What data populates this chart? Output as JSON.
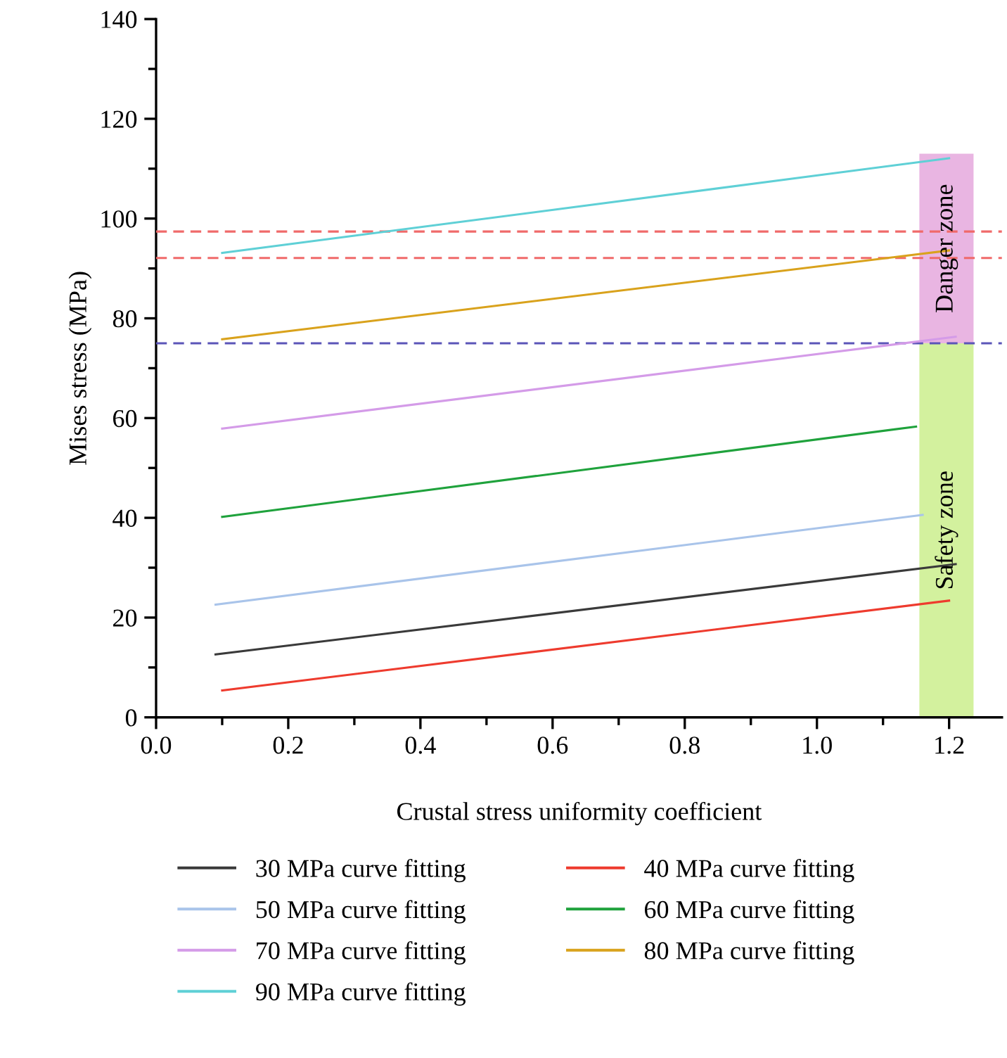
{
  "chart_data": {
    "type": "line",
    "xlabel": "Crustal stress uniformity coefficient",
    "ylabel": "Mises stress (MPa)",
    "xlim": [
      0,
      1.28
    ],
    "xticks": [
      {
        "value": 0,
        "label": "0.0"
      },
      0.2,
      0.4,
      0.6,
      0.8,
      {
        "value": 1,
        "label": "1.0"
      },
      1.2
    ],
    "ylim": [
      0,
      140
    ],
    "yticks": [
      0,
      20,
      40,
      60,
      80,
      100,
      120,
      140
    ],
    "grid": false,
    "legend": "bottom",
    "line_style": "solid",
    "marker": "none",
    "series": [
      {
        "name": "30 MPa curve fitting",
        "color": "#3a3a3a",
        "x": [
          0.09,
          1.21
        ],
        "values": [
          12.6,
          30.7
        ]
      },
      {
        "name": "40 MPa curve fitting",
        "color": "#ee3b2e",
        "x": [
          0.1,
          1.2
        ],
        "values": [
          5.4,
          23.4
        ]
      },
      {
        "name": "50 MPa curve fitting",
        "color": "#a9c4ea",
        "x": [
          0.09,
          1.16
        ],
        "values": [
          22.6,
          40.6
        ]
      },
      {
        "name": "60 MPa curve fitting",
        "color": "#1fa23c",
        "x": [
          0.1,
          1.15
        ],
        "values": [
          40.2,
          58.3
        ]
      },
      {
        "name": "70 MPa curve fitting",
        "color": "#d49be8",
        "x": [
          0.1,
          1.21
        ],
        "values": [
          57.9,
          76.3
        ]
      },
      {
        "name": "80 MPa curve fitting",
        "color": "#d9a21c",
        "x": [
          0.1,
          1.2
        ],
        "values": [
          75.8,
          93.6
        ]
      },
      {
        "name": "90 MPa curve fitting",
        "color": "#5fd0d6",
        "x": [
          0.1,
          1.2
        ],
        "values": [
          93.1,
          112.1
        ]
      },
      {
        "type": "bar",
        "name": "Safety zone",
        "color": "#d3f19e",
        "x": [
          1.196
        ],
        "base": [
          0
        ],
        "values": [
          75
        ]
      },
      {
        "type": "bar",
        "name": "Danger zone",
        "color": "#e9b5e2",
        "x": [
          1.196
        ],
        "base": [
          75
        ],
        "values": [
          38
        ]
      }
    ],
    "ref_lines": [
      {
        "axis": "y",
        "value": 97.4,
        "color": "#f06a6a",
        "line_style": "dashed"
      },
      {
        "axis": "y",
        "value": 92.1,
        "color": "#f06a6a",
        "line_style": "dashed"
      },
      {
        "axis": "y",
        "value": 75.0,
        "color": "#5b55b8",
        "line_style": "dashed"
      }
    ]
  }
}
